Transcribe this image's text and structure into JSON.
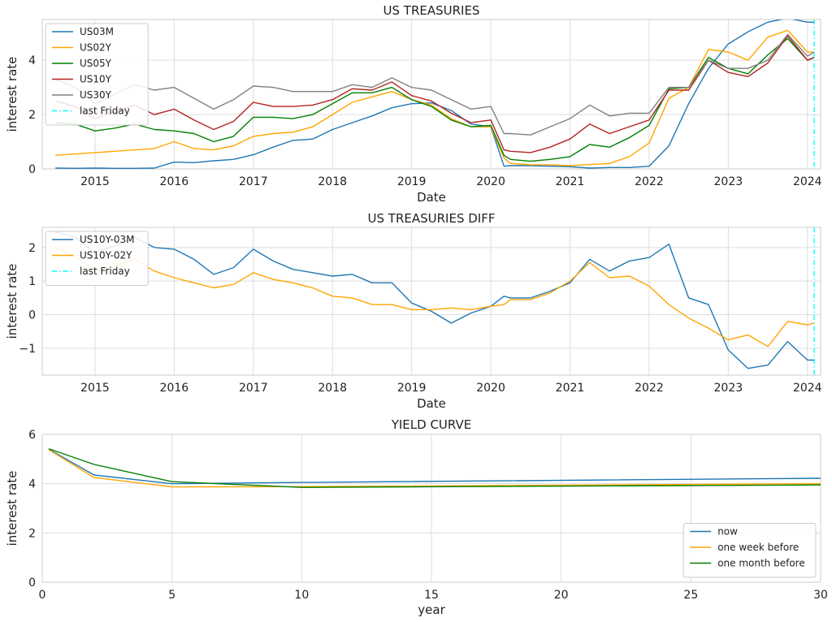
{
  "chart_data": [
    {
      "type": "line",
      "title": "US TREASURIES",
      "xlabel": "Date",
      "ylabel": "interest rate",
      "xlim": [
        "2014-05-01",
        "2024-03-01"
      ],
      "ylim": [
        0,
        5.5
      ],
      "x_ticks": [
        "2015",
        "2016",
        "2017",
        "2018",
        "2019",
        "2020",
        "2021",
        "2022",
        "2023",
        "2024"
      ],
      "y_ticks": [
        "0",
        "2",
        "4"
      ],
      "grid": true,
      "legend_position": "upper-left",
      "x": [
        "2014-07",
        "2014-10",
        "2015-01",
        "2015-04",
        "2015-07",
        "2015-10",
        "2016-01",
        "2016-04",
        "2016-07",
        "2016-10",
        "2017-01",
        "2017-04",
        "2017-07",
        "2017-10",
        "2018-01",
        "2018-04",
        "2018-07",
        "2018-10",
        "2019-01",
        "2019-04",
        "2019-07",
        "2019-10",
        "2020-01",
        "2020-03",
        "2020-04",
        "2020-07",
        "2020-10",
        "2021-01",
        "2021-04",
        "2021-07",
        "2021-10",
        "2022-01",
        "2022-04",
        "2022-07",
        "2022-10",
        "2023-01",
        "2023-04",
        "2023-07",
        "2023-10",
        "2024-01",
        "2024-02"
      ],
      "series": [
        {
          "name": "US03M",
          "color": "#1f77b4",
          "values": [
            0.03,
            0.02,
            0.03,
            0.02,
            0.02,
            0.03,
            0.25,
            0.23,
            0.3,
            0.35,
            0.52,
            0.8,
            1.05,
            1.1,
            1.45,
            1.7,
            1.95,
            2.25,
            2.4,
            2.43,
            2.15,
            1.65,
            1.55,
            0.1,
            0.12,
            0.12,
            0.1,
            0.08,
            0.03,
            0.05,
            0.05,
            0.1,
            0.85,
            2.4,
            3.7,
            4.6,
            5.05,
            5.4,
            5.55,
            5.4,
            5.4
          ]
        },
        {
          "name": "US02Y",
          "color": "#ffa500",
          "values": [
            0.5,
            0.55,
            0.6,
            0.65,
            0.7,
            0.75,
            1.0,
            0.75,
            0.7,
            0.85,
            1.2,
            1.3,
            1.35,
            1.55,
            2.0,
            2.45,
            2.65,
            2.85,
            2.55,
            2.35,
            1.85,
            1.55,
            1.55,
            0.4,
            0.2,
            0.15,
            0.15,
            0.12,
            0.16,
            0.2,
            0.45,
            0.95,
            2.6,
            3.0,
            4.4,
            4.3,
            4.0,
            4.85,
            5.1,
            4.3,
            4.3
          ]
        },
        {
          "name": "US05Y",
          "color": "#008000",
          "values": [
            1.7,
            1.65,
            1.4,
            1.5,
            1.65,
            1.45,
            1.4,
            1.3,
            1.0,
            1.2,
            1.9,
            1.9,
            1.85,
            2.0,
            2.4,
            2.8,
            2.8,
            3.0,
            2.55,
            2.3,
            1.8,
            1.55,
            1.6,
            0.5,
            0.35,
            0.28,
            0.35,
            0.45,
            0.9,
            0.8,
            1.15,
            1.6,
            2.95,
            3.0,
            4.1,
            3.7,
            3.5,
            4.2,
            4.8,
            4.0,
            4.1
          ]
        },
        {
          "name": "US10Y",
          "color": "#b22222",
          "values": [
            2.5,
            2.3,
            1.85,
            2.1,
            2.35,
            2.0,
            2.2,
            1.8,
            1.45,
            1.75,
            2.45,
            2.3,
            2.3,
            2.35,
            2.55,
            2.95,
            2.9,
            3.2,
            2.7,
            2.5,
            2.05,
            1.7,
            1.8,
            0.7,
            0.65,
            0.6,
            0.8,
            1.1,
            1.65,
            1.3,
            1.55,
            1.8,
            2.9,
            2.9,
            4.0,
            3.55,
            3.4,
            3.9,
            4.9,
            4.0,
            4.1
          ]
        },
        {
          "name": "US30Y",
          "color": "#808080",
          "values": [
            3.3,
            3.0,
            2.4,
            2.75,
            3.1,
            2.9,
            3.0,
            2.6,
            2.2,
            2.55,
            3.05,
            3.0,
            2.85,
            2.85,
            2.85,
            3.1,
            3.0,
            3.35,
            3.0,
            2.9,
            2.55,
            2.2,
            2.3,
            1.3,
            1.3,
            1.25,
            1.55,
            1.85,
            2.35,
            1.95,
            2.05,
            2.05,
            3.0,
            3.0,
            4.0,
            3.7,
            3.7,
            4.0,
            4.95,
            4.15,
            4.3
          ]
        }
      ],
      "vline": {
        "label": "last Friday",
        "x": "2024-02-02",
        "color": "#00ffff"
      }
    },
    {
      "type": "line",
      "title": "US TREASURIES DIFF",
      "xlabel": "Date",
      "ylabel": "interest rate",
      "xlim": [
        "2014-05-01",
        "2024-03-01"
      ],
      "ylim": [
        -1.8,
        2.6
      ],
      "x_ticks": [
        "2015",
        "2016",
        "2017",
        "2018",
        "2019",
        "2020",
        "2021",
        "2022",
        "2023",
        "2024"
      ],
      "y_ticks": [
        "-1",
        "0",
        "1",
        "2"
      ],
      "grid": true,
      "legend_position": "upper-left",
      "x": [
        "2014-07",
        "2014-10",
        "2015-01",
        "2015-04",
        "2015-07",
        "2015-10",
        "2016-01",
        "2016-04",
        "2016-07",
        "2016-10",
        "2017-01",
        "2017-04",
        "2017-07",
        "2017-10",
        "2018-01",
        "2018-04",
        "2018-07",
        "2018-10",
        "2019-01",
        "2019-04",
        "2019-07",
        "2019-10",
        "2020-01",
        "2020-03",
        "2020-04",
        "2020-07",
        "2020-10",
        "2021-01",
        "2021-04",
        "2021-07",
        "2021-10",
        "2022-01",
        "2022-04",
        "2022-07",
        "2022-10",
        "2023-01",
        "2023-04",
        "2023-07",
        "2023-10",
        "2024-01",
        "2024-02"
      ],
      "series": [
        {
          "name": "US10Y-03M",
          "color": "#1f77b4",
          "values": [
            2.47,
            2.3,
            1.85,
            2.05,
            2.3,
            2.0,
            1.95,
            1.65,
            1.2,
            1.4,
            1.95,
            1.6,
            1.35,
            1.25,
            1.15,
            1.2,
            0.95,
            0.95,
            0.35,
            0.1,
            -0.25,
            0.05,
            0.25,
            0.55,
            0.5,
            0.5,
            0.7,
            0.95,
            1.65,
            1.3,
            1.6,
            1.7,
            2.1,
            0.5,
            0.3,
            -1.05,
            -1.6,
            -1.5,
            -0.8,
            -1.35,
            -1.35
          ]
        },
        {
          "name": "US10Y-02Y",
          "color": "#ffa500",
          "values": [
            2.0,
            1.75,
            1.3,
            1.45,
            1.65,
            1.3,
            1.1,
            0.95,
            0.8,
            0.9,
            1.25,
            1.05,
            0.95,
            0.8,
            0.55,
            0.5,
            0.3,
            0.3,
            0.15,
            0.15,
            0.2,
            0.15,
            0.25,
            0.3,
            0.45,
            0.45,
            0.65,
            1.0,
            1.55,
            1.1,
            1.15,
            0.85,
            0.3,
            -0.1,
            -0.4,
            -0.75,
            -0.6,
            -0.95,
            -0.2,
            -0.3,
            -0.25
          ]
        }
      ],
      "vline": {
        "label": "last Friday",
        "x": "2024-02-02",
        "color": "#00ffff"
      }
    },
    {
      "type": "line",
      "title": "YIELD CURVE",
      "xlabel": "year",
      "ylabel": "interest rate",
      "xlim": [
        0,
        30
      ],
      "ylim": [
        0,
        6
      ],
      "x_ticks": [
        "0",
        "5",
        "10",
        "15",
        "20",
        "25",
        "30"
      ],
      "y_ticks": [
        "0",
        "2",
        "4",
        "6"
      ],
      "grid": true,
      "legend_position": "lower-right",
      "x": [
        0.25,
        2,
        5,
        10,
        30
      ],
      "series": [
        {
          "name": "now",
          "color": "#1f77b4",
          "values": [
            5.4,
            4.35,
            4.0,
            4.05,
            4.22
          ]
        },
        {
          "name": "one week before",
          "color": "#ffa500",
          "values": [
            5.38,
            4.25,
            3.87,
            3.88,
            4.0
          ]
        },
        {
          "name": "one month before",
          "color": "#008000",
          "values": [
            5.42,
            4.78,
            4.08,
            3.85,
            3.95
          ]
        }
      ]
    }
  ]
}
